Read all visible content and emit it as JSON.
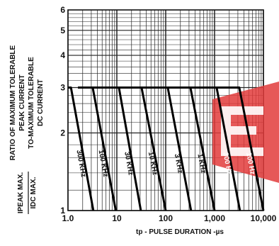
{
  "chart_data": {
    "type": "line",
    "title": "",
    "xlabel": "tp - PULSE DURATION -µs",
    "x_scale": "log",
    "xlim": [
      1.0,
      10000
    ],
    "x_ticks": [
      "1.0",
      "10",
      "100",
      "1,000",
      "10,000"
    ],
    "ylabel_lines": [
      "RATIO OF MAXIMUM TOLERABLE",
      "PEAK CURRENT",
      "TO-MAXIMUM TOLERABLE",
      "DC CURRENT"
    ],
    "ylabel_fraction": {
      "numerator": "IPEAK MAX.",
      "denominator": "IDC MAX."
    },
    "y_scale": "log",
    "ylim": [
      1,
      6
    ],
    "y_ticks": [
      "1",
      "2",
      "3",
      "4",
      "5",
      "6"
    ],
    "grid": true,
    "plateau": 3,
    "series": [
      {
        "name": "300 KHz",
        "x": [
          1.0,
          1.15,
          3.3
        ],
        "y": [
          3,
          3,
          1
        ]
      },
      {
        "name": "100 KHz",
        "x": [
          1.6,
          3.2,
          9.5
        ],
        "y": [
          3,
          3,
          1
        ]
      },
      {
        "name": "30 KHz",
        "x": [
          1.6,
          11,
          31
        ],
        "y": [
          3,
          3,
          1
        ]
      },
      {
        "name": "10 KHz",
        "x": [
          1.6,
          32,
          100
        ],
        "y": [
          3,
          3,
          1
        ]
      },
      {
        "name": "3 KHz",
        "x": [
          1.6,
          110,
          330
        ],
        "y": [
          3,
          3,
          1
        ]
      },
      {
        "name": "1 KHz",
        "x": [
          1.6,
          320,
          1000
        ],
        "y": [
          3,
          3,
          1
        ]
      },
      {
        "name": "300 Hz",
        "x": [
          1.6,
          1100,
          3300
        ],
        "y": [
          3,
          3,
          1
        ]
      },
      {
        "name": "100 Hz",
        "x": [
          1.6,
          3200,
          10000
        ],
        "y": [
          3,
          3,
          1
        ]
      }
    ]
  }
}
